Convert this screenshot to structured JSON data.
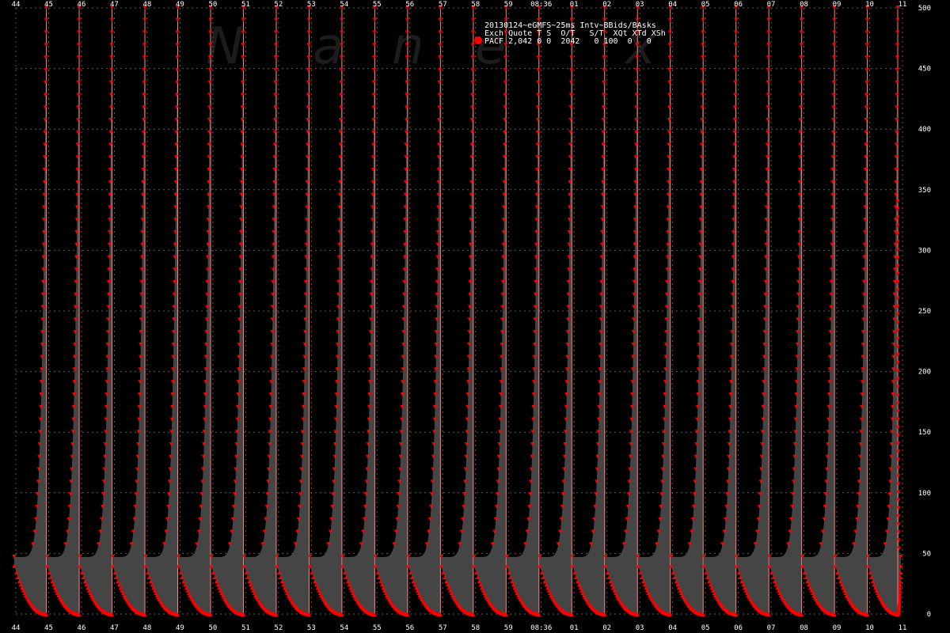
{
  "chart_data": {
    "type": "area",
    "title": "20130124~eGMFS~25ms Intv~BBids/BAsks",
    "xlabel": "",
    "ylabel": "",
    "ylim": [
      0,
      500
    ],
    "y_ticks": [
      0,
      50,
      100,
      150,
      200,
      250,
      300,
      350,
      400,
      450,
      500
    ],
    "x_tick_labels": [
      "44",
      "45",
      "46",
      "47",
      "48",
      "49",
      "50",
      "51",
      "52",
      "53",
      "54",
      "55",
      "56",
      "57",
      "58",
      "59",
      "08:36",
      "01",
      "02",
      "03",
      "04",
      "05",
      "06",
      "07",
      "08",
      "09",
      "10",
      "11"
    ],
    "grid": true,
    "legend_position": "top-center",
    "watermark": "Nanex",
    "legend": {
      "header": "Exch Quote T S  O/T   S/T  XQt XTd XSh",
      "row": "PACF 2,042 0 0  2042   0 100  0   0"
    },
    "series": [
      {
        "name": "PACF",
        "description": "Repeating sawtooth cycles: best ask resets to 500 then decays toward ~47; best bid starts near ~38 then decays toward 0",
        "cycle_start_times": [
          "44.55",
          "45.55",
          "46.55",
          "47.55",
          "48.55",
          "49.55",
          "50.55",
          "51.55",
          "52.55",
          "53.55",
          "54.55",
          "55.55",
          "56.55",
          "57.55",
          "58.55",
          "59.55",
          "00.55",
          "01.55",
          "02.55",
          "03.55",
          "04.55",
          "05.55",
          "06.55",
          "07.55",
          "08.55",
          "09.55",
          "10.55",
          "11.55"
        ],
        "cycle_peak_ask": [
          500,
          500,
          500,
          500,
          500,
          500,
          500,
          500,
          500,
          500,
          500,
          500,
          500,
          500,
          500,
          500,
          500,
          500,
          500,
          500,
          500,
          500,
          500,
          500,
          500,
          500,
          500,
          340
        ],
        "cycle_min_ask": 47,
        "cycle_start_bid": 38,
        "cycle_min_bid": 0
      }
    ],
    "colors": {
      "background": "#000000",
      "area_fill": "#454545",
      "marker": "#ff0000",
      "grid": "#5a5a5a",
      "text": "#ffffff",
      "vertical_line": "#ff8080"
    }
  }
}
